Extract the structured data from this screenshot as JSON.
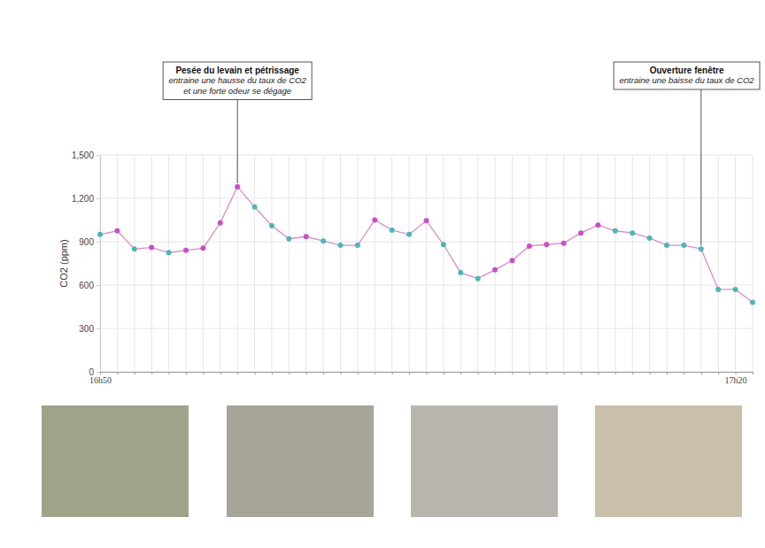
{
  "chart_data": {
    "type": "line",
    "y_label": "CO2 (ppm)",
    "categories": [
      "16h50",
      null,
      null,
      null,
      null,
      null,
      null,
      null,
      null,
      null,
      null,
      null,
      null,
      null,
      null,
      null,
      null,
      null,
      null,
      null,
      null,
      null,
      null,
      null,
      null,
      null,
      null,
      null,
      null,
      null,
      null,
      null,
      null,
      null,
      null,
      null,
      null,
      "17h20",
      null
    ],
    "series": [
      {
        "name": "CO2",
        "color": "#d98cc8",
        "marker": "circle",
        "values": [
          950,
          975,
          850,
          860,
          825,
          840,
          855,
          1030,
          1280,
          1140,
          1010,
          920,
          935,
          905,
          875,
          875,
          1050,
          980,
          950,
          1045,
          880,
          685,
          645,
          705,
          770,
          870,
          880,
          890,
          960,
          1015,
          975,
          960,
          925,
          875,
          875,
          850,
          570,
          570,
          480
        ],
        "colors": [
          "#4db6b6",
          "#c94fc9",
          "#4db6b6",
          "#c94fc9",
          "#4db6b6",
          "#c94fc9",
          "#c94fc9",
          "#c94fc9",
          "#c94fc9",
          "#4db6b6",
          "#4db6b6",
          "#4db6b6",
          "#c94fc9",
          "#4db6b6",
          "#4db6b6",
          "#4db6b6",
          "#c94fc9",
          "#4db6b6",
          "#4db6b6",
          "#c94fc9",
          "#4db6b6",
          "#4db6b6",
          "#4db6b6",
          "#c94fc9",
          "#c94fc9",
          "#c94fc9",
          "#c94fc9",
          "#c94fc9",
          "#c94fc9",
          "#c94fc9",
          "#4db6b6",
          "#4db6b6",
          "#4db6b6",
          "#4db6b6",
          "#4db6b6",
          "#4db6b6",
          "#4db6b6",
          "#4db6b6",
          "#4db6b6"
        ]
      }
    ],
    "ylim": [
      0,
      1500
    ],
    "yticks": [
      0,
      300,
      600,
      900,
      {
        "value": 1200,
        "label": "1,200"
      },
      {
        "value": 1500,
        "label": "1,500"
      }
    ],
    "grid": true,
    "annotations": [
      {
        "point": 8,
        "title": "Pesée du levain et pétrissage",
        "text": [
          "entraine une hausse du taux de CO2",
          "et une forte odeur se dégage"
        ]
      },
      {
        "point": 35,
        "title": "Ouverture fenêtre",
        "text": [
          "entraine une baisse du taux de CO2"
        ]
      }
    ]
  }
}
